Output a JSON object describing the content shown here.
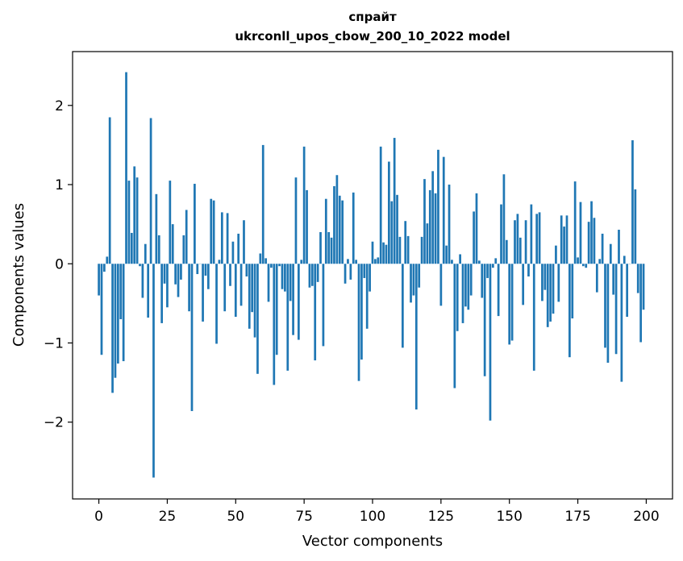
{
  "chart_data": {
    "type": "bar",
    "title": "спрайт",
    "subtitle": "ukrconll_upos_cbow_200_10_2022 model",
    "xlabel": "Vector components",
    "ylabel": "Components values",
    "xlim": [
      -9.6,
      209.6
    ],
    "ylim": [
      -2.97,
      2.68
    ],
    "x_ticks": [
      0,
      25,
      50,
      75,
      100,
      125,
      150,
      175,
      200
    ],
    "y_ticks": [
      -2,
      -1,
      0,
      1,
      2
    ],
    "x_tick_labels": [
      "0",
      "25",
      "50",
      "75",
      "100",
      "125",
      "150",
      "175",
      "200"
    ],
    "y_tick_labels": [
      "−2",
      "−1",
      "0",
      "1",
      "2"
    ],
    "bar_color": "#1f77b4",
    "grid": false,
    "values": [
      -0.4,
      -1.15,
      -0.1,
      0.09,
      1.85,
      -1.63,
      -1.44,
      -1.26,
      -0.7,
      -1.23,
      2.42,
      1.05,
      0.39,
      1.23,
      1.09,
      -0.03,
      -0.43,
      0.25,
      -0.68,
      1.84,
      -2.7,
      0.88,
      0.36,
      -0.75,
      -0.25,
      -0.55,
      1.05,
      0.5,
      -0.26,
      -0.42,
      -0.2,
      0.36,
      0.68,
      -0.6,
      -1.86,
      1.01,
      -0.13,
      0.0,
      -0.73,
      -0.15,
      -0.32,
      0.82,
      0.8,
      -1.01,
      0.05,
      0.65,
      -0.6,
      0.64,
      -0.28,
      0.28,
      -0.67,
      0.38,
      -0.53,
      0.55,
      -0.16,
      -0.82,
      -0.61,
      -0.93,
      -1.39,
      0.13,
      1.5,
      0.07,
      -0.48,
      -0.05,
      -1.53,
      -1.15,
      -0.03,
      -0.32,
      -0.35,
      -1.35,
      -0.47,
      -0.9,
      1.09,
      -0.96,
      0.05,
      1.48,
      0.93,
      -0.3,
      -0.28,
      -1.22,
      -0.23,
      0.4,
      -1.04,
      0.82,
      0.4,
      0.33,
      0.98,
      1.12,
      0.86,
      0.8,
      -0.25,
      0.06,
      -0.2,
      0.9,
      0.05,
      -1.48,
      -1.21,
      -0.18,
      -0.82,
      -0.35,
      0.28,
      0.06,
      0.08,
      1.48,
      0.27,
      0.24,
      1.29,
      0.79,
      1.59,
      0.87,
      0.34,
      -1.06,
      0.54,
      0.35,
      -0.49,
      -0.4,
      -1.84,
      -0.3,
      0.34,
      1.07,
      0.51,
      0.93,
      1.17,
      0.89,
      1.44,
      -0.53,
      1.35,
      0.23,
      1.0,
      0.05,
      -1.57,
      -0.85,
      0.12,
      -0.75,
      -0.54,
      -0.58,
      -0.4,
      0.66,
      0.89,
      0.04,
      -0.43,
      -1.42,
      -0.18,
      -1.98,
      -0.05,
      0.07,
      -0.66,
      0.75,
      1.13,
      0.3,
      -1.02,
      -0.97,
      0.55,
      0.63,
      0.33,
      -0.52,
      0.55,
      -0.16,
      0.75,
      -1.35,
      0.63,
      0.65,
      -0.47,
      -0.33,
      -0.8,
      -0.73,
      -0.63,
      0.23,
      -0.48,
      0.61,
      0.47,
      0.61,
      -1.18,
      -0.69,
      1.04,
      0.08,
      0.78,
      -0.03,
      -0.05,
      0.53,
      0.79,
      0.58,
      -0.36,
      0.06,
      0.38,
      -1.06,
      -1.25,
      0.25,
      -0.39,
      -1.14,
      0.43,
      -1.49,
      0.1,
      -0.67,
      0.0,
      1.56,
      0.94,
      -0.37,
      -0.99,
      -0.58
    ]
  }
}
